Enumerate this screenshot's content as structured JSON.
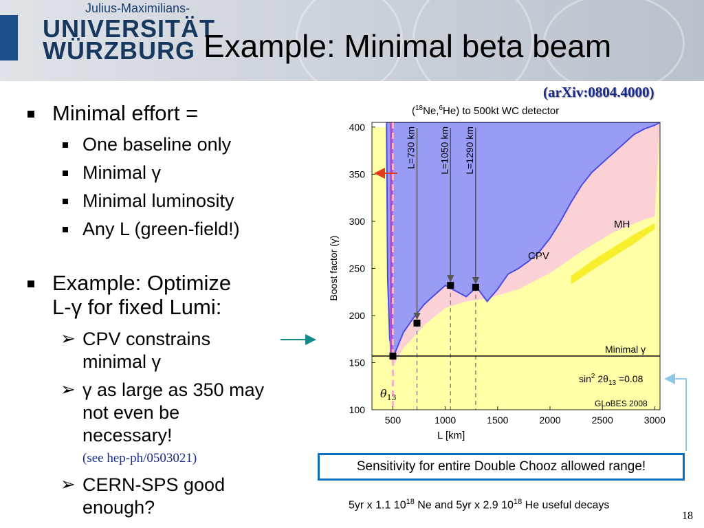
{
  "header": {
    "university_sub": "Julius-Maximilians-",
    "university_line1": "UNIVERSITÄT",
    "university_line2": "WÜRZBURG",
    "title": "Example: Minimal beta beam"
  },
  "reference": "(arXiv:0804.4000)",
  "bullets": {
    "minimal_effort": "Minimal effort =",
    "sub1": "One baseline only",
    "sub2": "Minimal γ",
    "sub3": "Minimal luminosity",
    "sub4": "Any L (green-field!)",
    "example_line1": "Example: Optimize",
    "example_line2": "L-γ for fixed Lumi:",
    "cpv_line1": "CPV constrains",
    "cpv_line2": "minimal γ",
    "gamma_line1": "γ as large as 350 may",
    "gamma_line2": "not even be",
    "gamma_line3": "necessary!",
    "see_ref": "(see hep-ph/0503021)",
    "cern_line1": "CERN-SPS good",
    "cern_line2": "enough?"
  },
  "sensitivity_box": "Sensitivity for entire Double Chooz allowed range!",
  "footer": {
    "part1": "5yr x 1.1 10",
    "exp1": "18",
    "part2": " Ne and 5yr x 2.9 10",
    "exp2": "18",
    "part3": " He useful decays"
  },
  "page_number": "18",
  "colors": {
    "cpv": "#9a9bf5",
    "mh": "#fbd1d6",
    "theta13": "#ffffa8",
    "yellow_band": "#f7ef2e",
    "magenta": "#b64fd8",
    "arrow_red": "#e23a1e",
    "arrow_teal": "#148a86",
    "arrow_lightblue": "#8ec8e6"
  },
  "chart_data": {
    "type": "area",
    "title_parts": [
      "(",
      "18",
      "Ne,",
      "6",
      "He) to 500kt WC detector"
    ],
    "xlabel": "L [km]",
    "ylabel": "Boost factor (γ)",
    "xlim": [
      300,
      3050
    ],
    "ylim": [
      100,
      405
    ],
    "xticks": [
      500,
      1000,
      1500,
      2000,
      2500,
      3000
    ],
    "yticks": [
      100,
      150,
      200,
      250,
      300,
      350,
      400
    ],
    "regions": {
      "theta13": {
        "label": "θ",
        "sub": "13",
        "x": [
          350,
          380,
          430,
          500,
          700,
          1000,
          1300,
          1600,
          2000,
          2500,
          3000,
          3000,
          350
        ],
        "y": [
          100,
          110,
          122,
          128,
          145,
          165,
          185,
          205,
          230,
          262,
          295,
          100,
          100
        ]
      },
      "mh": {
        "label": "MH",
        "x": [
          500,
          700,
          1000,
          1300,
          1600,
          2000,
          2500,
          2800,
          3000
        ],
        "y": [
          130,
          162,
          180,
          195,
          218,
          243,
          272,
          295,
          315
        ]
      },
      "mh_top": {
        "x": [
          500,
          520,
          600,
          800,
          1000,
          1200,
          1400,
          1700,
          2000,
          2300,
          2600,
          2900,
          3000
        ],
        "y": [
          145,
          150,
          165,
          190,
          208,
          215,
          218,
          228,
          245,
          268,
          288,
          302,
          305
        ]
      },
      "cpv": {
        "label": "CPV",
        "x": [
          440,
          450,
          470,
          500,
          600,
          700,
          800,
          900,
          1000,
          1100,
          1200,
          1300,
          1400,
          1500,
          1600,
          1700,
          1800,
          1900,
          2000,
          2100,
          2200,
          2300,
          2400,
          2500,
          2600,
          2700,
          2800,
          2900,
          3000
        ],
        "y": [
          400,
          240,
          175,
          155,
          182,
          198,
          212,
          222,
          232,
          226,
          220,
          230,
          215,
          228,
          244,
          250,
          258,
          268,
          282,
          300,
          320,
          338,
          352,
          362,
          372,
          382,
          392,
          398,
          402
        ]
      },
      "yellow_band": {
        "x": [
          2200,
          2400,
          2600,
          2800,
          3000
        ],
        "y_low": [
          233,
          248,
          262,
          276,
          292
        ],
        "y_high": [
          242,
          258,
          272,
          286,
          298
        ]
      }
    },
    "magenta_strip": {
      "x": [
        470,
        500
      ],
      "label": ""
    },
    "baselines": [
      {
        "label": "L=730 km",
        "L": 730,
        "gamma": 192
      },
      {
        "label": "L=1050 km",
        "L": 1050,
        "gamma": 232
      },
      {
        "label": "L=1290 km",
        "L": 1290,
        "gamma": 230
      }
    ],
    "minimal_point": {
      "L": 500,
      "gamma": 157
    },
    "minimal_gamma_line": {
      "gamma": 157,
      "label": "Minimal γ"
    },
    "dashed_L": 500,
    "annotation": {
      "text_pre": "sin",
      "sup": "2",
      "text_mid": " 2θ",
      "sub": "13",
      "text_post": " =0.08"
    },
    "credit": "GLoBES 2008"
  }
}
